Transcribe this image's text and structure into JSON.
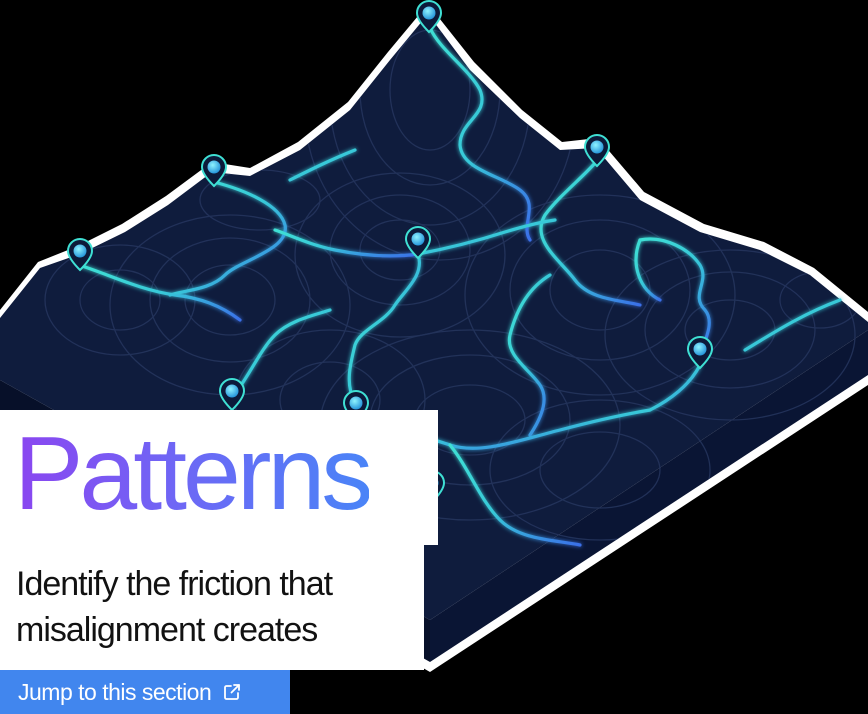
{
  "hero": {
    "title": "Patterns",
    "subtitle": "Identify the friction that misalignment creates",
    "cta_label": "Jump to this section",
    "cta_icon": "external-link-icon"
  },
  "illustration": {
    "name": "topographic-terrain-map",
    "marker_count": 9,
    "colors": {
      "background": "#000000",
      "terrain": "#0f1c3d",
      "terrain_side": "#091331",
      "contour": "#25345e",
      "route_teal": "#3fe0d4",
      "route_blue": "#3a6fe8",
      "marker": "#2fb8ee"
    }
  },
  "colors": {
    "title_gradient_start": "#8a46f0",
    "title_gradient_end": "#4a84f7",
    "panel": "#ffffff",
    "button": "#4186ee",
    "text": "#121212"
  }
}
